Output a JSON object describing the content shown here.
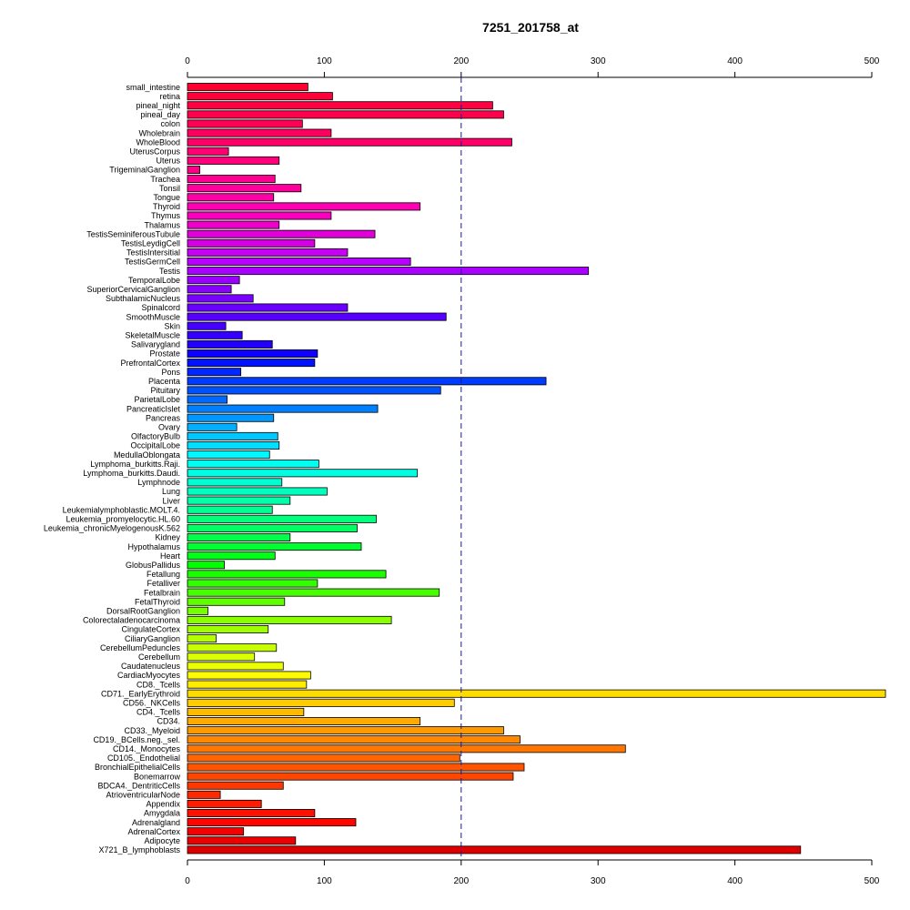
{
  "chart_data": {
    "type": "bar",
    "orientation": "horizontal",
    "title": "7251_201758_at",
    "xlabel": "",
    "ylabel": "",
    "xlim": [
      0,
      500
    ],
    "xticks": [
      0,
      100,
      200,
      300,
      400,
      500
    ],
    "reference_line": 200,
    "axes_positions": [
      "top",
      "bottom"
    ],
    "grid": false,
    "categories": [
      "small_intestine",
      "retina",
      "pineal_night",
      "pineal_day",
      "colon",
      "Wholebrain",
      "WholeBlood",
      "UterusCorpus",
      "Uterus",
      "TrigeminalGanglion",
      "Trachea",
      "Tonsil",
      "Tongue",
      "Thyroid",
      "Thymus",
      "Thalamus",
      "TestisSeminiferousTubule",
      "TestisLeydigCell",
      "TestisIntersitial",
      "TestisGermCell",
      "Testis",
      "TemporalLobe",
      "SuperiorCervicalGanglion",
      "SubthalamicNucleus",
      "Spinalcord",
      "SmoothMuscle",
      "Skin",
      "SkeletalMuscle",
      "Salivarygland",
      "Prostate",
      "PrefrontalCortex",
      "Pons",
      "Placenta",
      "Pituitary",
      "ParietalLobe",
      "PancreaticIslet",
      "Pancreas",
      "Ovary",
      "OlfactoryBulb",
      "OccipitalLobe",
      "MedullaOblongata",
      "Lymphoma_burkitts.Raji.",
      "Lymphoma_burkitts.Daudi.",
      "Lymphnode",
      "Lung",
      "Liver",
      "Leukemialymphoblastic.MOLT.4.",
      "Leukemia_promyelocytic.HL.60",
      "Leukemia_chronicMyelogenousK.562",
      "Kidney",
      "Hypothalamus",
      "Heart",
      "GlobusPallidus",
      "Fetallung",
      "Fetalliver",
      "Fetalbrain",
      "FetalThyroid",
      "DorsalRootGanglion",
      "Colorectaladenocarcinoma",
      "CingulateCortex",
      "CiliaryGanglion",
      "CerebellumPeduncles",
      "Cerebellum",
      "Caudatenucleus",
      "CardiacMyocytes",
      "CD8._Tcells",
      "CD71._EarlyErythroid",
      "CD56._NKCells",
      "CD4._Tcells",
      "CD34.",
      "CD33._Myeloid",
      "CD19._BCells.neg._sel.",
      "CD14._Monocytes",
      "CD105._Endothelial",
      "BronchialEpithelialCells",
      "Bonemarrow",
      "BDCA4._DentriticCells",
      "AtrioventricularNode",
      "Appendix",
      "Amygdala",
      "Adrenalgland",
      "AdrenalCortex",
      "Adipocyte",
      "X721_B_lymphoblasts"
    ],
    "values": [
      88,
      106,
      223,
      231,
      84,
      105,
      237,
      30,
      67,
      9,
      64,
      83,
      63,
      170,
      105,
      67,
      137,
      93,
      117,
      163,
      293,
      38,
      32,
      48,
      117,
      189,
      28,
      40,
      62,
      95,
      93,
      39,
      262,
      185,
      29,
      139,
      63,
      36,
      66,
      67,
      60,
      96,
      168,
      69,
      102,
      75,
      62,
      138,
      124,
      75,
      127,
      64,
      27,
      145,
      95,
      184,
      71,
      15,
      149,
      59,
      21,
      65,
      49,
      70,
      90,
      87,
      510,
      195,
      85,
      170,
      231,
      243,
      320,
      199,
      246,
      238,
      70,
      24,
      54,
      93,
      123,
      41,
      79,
      448
    ],
    "colors": [
      "#ff0030",
      "#ff0039",
      "#ff0042",
      "#ff004b",
      "#ff0055",
      "#ff005e",
      "#ff0068",
      "#ff0072",
      "#ff007c",
      "#ff0086",
      "#ff0091",
      "#ff009c",
      "#ff00a7",
      "#ff00b2",
      "#fa00be",
      "#ee00ca",
      "#e100d7",
      "#d400e4",
      "#c600f1",
      "#b800ff",
      "#a900ff",
      "#9a00ff",
      "#8a00ff",
      "#7a00ff",
      "#6900ff",
      "#5800ff",
      "#4600ff",
      "#3400ff",
      "#2200ff",
      "#1000ff",
      "#0012ff",
      "#0027ff",
      "#003cff",
      "#0052ff",
      "#0069ff",
      "#0080ff",
      "#0097ff",
      "#00afff",
      "#00c7ff",
      "#00dfff",
      "#00f7ff",
      "#00fff1",
      "#00ffe2",
      "#00ffd0",
      "#00ffbd",
      "#00ffa8",
      "#00ff92",
      "#00ff7b",
      "#00ff63",
      "#00ff4a",
      "#00ff31",
      "#00ff17",
      "#02ff00",
      "#1aff00",
      "#31ff00",
      "#48ff00",
      "#5fff00",
      "#75ff00",
      "#8aff00",
      "#9fff00",
      "#b3ff00",
      "#c7ff00",
      "#daff00",
      "#ecff00",
      "#fefb00",
      "#ffec00",
      "#ffdc00",
      "#ffcc00",
      "#ffbb00",
      "#ffaa00",
      "#ff9900",
      "#ff8800",
      "#ff7600",
      "#ff6500",
      "#ff5500",
      "#ff4600",
      "#ff3700",
      "#ff2900",
      "#ff1c00",
      "#ff1000",
      "#ff0500",
      "#f50000",
      "#ea0000",
      "#de0000"
    ]
  }
}
